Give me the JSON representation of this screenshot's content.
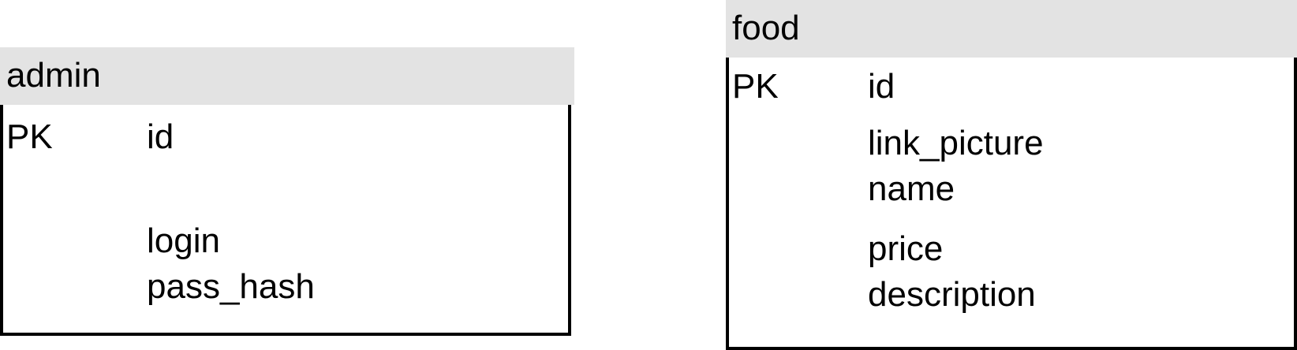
{
  "entities": {
    "admin": {
      "title": "admin",
      "primary_key_label": "PK",
      "primary_key_field": "id",
      "fields": [
        "login",
        "pass_hash"
      ]
    },
    "food": {
      "title": "food",
      "primary_key_label": "PK",
      "primary_key_field": "id",
      "fields": [
        "link_picture",
        "name",
        "price",
        "description"
      ]
    }
  }
}
